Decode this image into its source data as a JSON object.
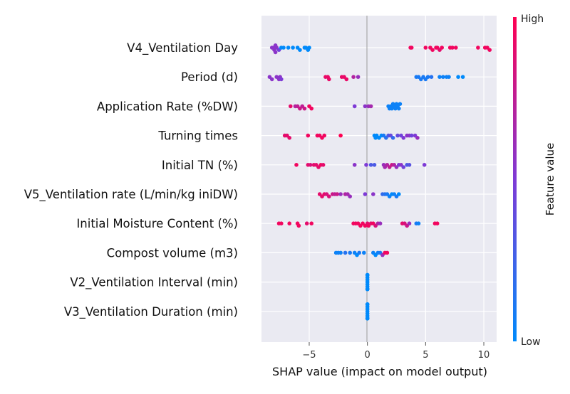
{
  "chart_data": {
    "type": "scatter",
    "subtype": "shap-beeswarm-summary",
    "xlabel": "SHAP value (impact on model output)",
    "xlim": [
      -9.1,
      11.1
    ],
    "xticks": [
      {
        "value": -5,
        "label": "−5"
      },
      {
        "value": 0,
        "label": "0"
      },
      {
        "value": 5,
        "label": "5"
      },
      {
        "value": 10,
        "label": "10"
      }
    ],
    "grid": true,
    "colorbar": {
      "label": "Feature value",
      "high_label": "High",
      "low_label": "Low",
      "low_color": "#008afb",
      "mid_color": "#7e3ad6",
      "high_color": "#ff0052"
    },
    "features": [
      {
        "name": "V4_Ventilation Day",
        "points": [
          [
            -8.2,
            0.55
          ],
          [
            -8.1,
            0.55
          ],
          [
            -8.0,
            0.55
          ],
          [
            -7.9,
            0.55
          ],
          [
            -7.8,
            0.55
          ],
          [
            -7.9,
            0.55
          ],
          [
            -7.6,
            0.45
          ],
          [
            -7.4,
            0.0
          ],
          [
            -7.2,
            0.0
          ],
          [
            -6.8,
            0.0
          ],
          [
            -6.4,
            0.0
          ],
          [
            -6.0,
            0.0
          ],
          [
            -5.8,
            0.0
          ],
          [
            -5.4,
            0.0
          ],
          [
            -5.3,
            0.0
          ],
          [
            -5.1,
            0.0
          ],
          [
            -5.0,
            0.0
          ],
          [
            3.7,
            0.95
          ],
          [
            3.8,
            0.95
          ],
          [
            5.0,
            0.95
          ],
          [
            5.4,
            0.95
          ],
          [
            5.6,
            0.95
          ],
          [
            5.9,
            0.95
          ],
          [
            6.0,
            0.95
          ],
          [
            6.2,
            0.9
          ],
          [
            6.4,
            0.95
          ],
          [
            7.1,
            0.95
          ],
          [
            7.3,
            0.95
          ],
          [
            7.6,
            0.95
          ],
          [
            9.5,
            0.95
          ],
          [
            10.1,
            0.95
          ],
          [
            10.3,
            0.95
          ],
          [
            10.5,
            0.95
          ]
        ]
      },
      {
        "name": "Period (d)",
        "points": [
          [
            -8.4,
            0.55
          ],
          [
            -8.2,
            0.55
          ],
          [
            -7.8,
            0.55
          ],
          [
            -7.6,
            0.55
          ],
          [
            -7.5,
            0.55
          ],
          [
            -7.4,
            0.5
          ],
          [
            -3.6,
            0.92
          ],
          [
            -3.4,
            0.92
          ],
          [
            -3.3,
            0.92
          ],
          [
            -2.2,
            0.92
          ],
          [
            -2.0,
            0.92
          ],
          [
            -1.8,
            0.92
          ],
          [
            -1.2,
            0.7
          ],
          [
            -0.8,
            0.6
          ],
          [
            4.2,
            0.1
          ],
          [
            4.4,
            0.1
          ],
          [
            4.6,
            0.1
          ],
          [
            4.8,
            0.1
          ],
          [
            5.0,
            0.1
          ],
          [
            5.2,
            0.1
          ],
          [
            5.5,
            0.15
          ],
          [
            6.2,
            0.05
          ],
          [
            6.5,
            0.05
          ],
          [
            6.8,
            0.05
          ],
          [
            7.0,
            0.05
          ],
          [
            7.8,
            0.0
          ],
          [
            8.2,
            0.0
          ]
        ]
      },
      {
        "name": "Application Rate (%DW)",
        "points": [
          [
            -6.6,
            0.9
          ],
          [
            -6.2,
            0.7
          ],
          [
            -6.0,
            0.75
          ],
          [
            -5.8,
            0.8
          ],
          [
            -5.6,
            0.75
          ],
          [
            -5.4,
            0.8
          ],
          [
            -5.0,
            0.95
          ],
          [
            -4.8,
            0.95
          ],
          [
            -1.1,
            0.5
          ],
          [
            -0.2,
            0.55
          ],
          [
            0.1,
            0.6
          ],
          [
            0.3,
            0.65
          ],
          [
            1.8,
            0.05
          ],
          [
            1.9,
            0.05
          ],
          [
            2.0,
            0.05
          ],
          [
            2.1,
            0.05
          ],
          [
            2.2,
            0.05
          ],
          [
            2.3,
            0.05
          ],
          [
            2.4,
            0.05
          ],
          [
            2.5,
            0.05
          ],
          [
            2.6,
            0.05
          ],
          [
            2.7,
            0.05
          ],
          [
            2.8,
            0.05
          ]
        ]
      },
      {
        "name": "Turning times",
        "points": [
          [
            -7.1,
            0.9
          ],
          [
            -6.9,
            0.9
          ],
          [
            -6.7,
            0.9
          ],
          [
            -5.1,
            0.95
          ],
          [
            -4.3,
            0.95
          ],
          [
            -4.1,
            0.95
          ],
          [
            -3.9,
            0.95
          ],
          [
            -3.7,
            0.95
          ],
          [
            -2.3,
            1.0
          ],
          [
            0.6,
            0.0
          ],
          [
            0.7,
            0.0
          ],
          [
            0.8,
            0.0
          ],
          [
            1.0,
            0.0
          ],
          [
            1.2,
            0.0
          ],
          [
            1.4,
            0.1
          ],
          [
            1.6,
            0.15
          ],
          [
            1.8,
            0.3
          ],
          [
            2.0,
            0.4
          ],
          [
            2.2,
            0.2
          ],
          [
            2.6,
            0.4
          ],
          [
            2.9,
            0.45
          ],
          [
            3.1,
            0.5
          ],
          [
            3.4,
            0.55
          ],
          [
            3.6,
            0.55
          ],
          [
            3.8,
            0.45
          ],
          [
            4.1,
            0.5
          ],
          [
            4.3,
            0.6
          ]
        ]
      },
      {
        "name": "Initial TN (%)",
        "points": [
          [
            -6.1,
            0.95
          ],
          [
            -5.1,
            0.9
          ],
          [
            -4.9,
            0.85
          ],
          [
            -4.6,
            0.9
          ],
          [
            -4.4,
            0.9
          ],
          [
            -4.2,
            0.9
          ],
          [
            -4.0,
            0.95
          ],
          [
            -3.8,
            0.9
          ],
          [
            -1.1,
            0.55
          ],
          [
            -0.1,
            0.5
          ],
          [
            0.3,
            0.3
          ],
          [
            0.6,
            0.3
          ],
          [
            1.4,
            0.6
          ],
          [
            1.5,
            0.65
          ],
          [
            1.7,
            0.7
          ],
          [
            1.9,
            0.75
          ],
          [
            2.1,
            0.8
          ],
          [
            2.3,
            0.7
          ],
          [
            2.5,
            0.6
          ],
          [
            2.7,
            0.5
          ],
          [
            2.9,
            0.55
          ],
          [
            3.1,
            0.45
          ],
          [
            3.4,
            0.3
          ],
          [
            3.6,
            0.35
          ],
          [
            4.9,
            0.5
          ]
        ]
      },
      {
        "name": "V5_Ventilation rate (L/min/kg iniDW)",
        "points": [
          [
            -4.1,
            0.9
          ],
          [
            -3.9,
            0.9
          ],
          [
            -3.7,
            0.9
          ],
          [
            -3.5,
            0.85
          ],
          [
            -3.3,
            0.85
          ],
          [
            -3.0,
            0.8
          ],
          [
            -2.8,
            0.75
          ],
          [
            -2.6,
            0.8
          ],
          [
            -2.3,
            0.6
          ],
          [
            -1.9,
            0.7
          ],
          [
            -1.7,
            0.65
          ],
          [
            -1.5,
            0.6
          ],
          [
            -0.2,
            0.5
          ],
          [
            0.5,
            0.55
          ],
          [
            1.3,
            0.2
          ],
          [
            1.5,
            0.15
          ],
          [
            1.7,
            0.1
          ],
          [
            1.9,
            0.05
          ],
          [
            2.1,
            0.0
          ],
          [
            2.3,
            0.05
          ],
          [
            2.5,
            0.1
          ],
          [
            2.7,
            0.0
          ]
        ]
      },
      {
        "name": "Initial Moisture Content (%)",
        "points": [
          [
            -7.6,
            0.95
          ],
          [
            -7.4,
            0.95
          ],
          [
            -6.7,
            0.95
          ],
          [
            -6.0,
            0.95
          ],
          [
            -5.9,
            0.95
          ],
          [
            -5.2,
            0.9
          ],
          [
            -4.8,
            0.95
          ],
          [
            -1.2,
            0.95
          ],
          [
            -1.0,
            0.95
          ],
          [
            -0.8,
            0.95
          ],
          [
            -0.6,
            0.95
          ],
          [
            -0.4,
            0.95
          ],
          [
            -0.2,
            0.95
          ],
          [
            0.0,
            0.9
          ],
          [
            0.1,
            0.95
          ],
          [
            0.3,
            0.9
          ],
          [
            0.5,
            0.95
          ],
          [
            0.7,
            0.85
          ],
          [
            0.9,
            0.7
          ],
          [
            1.1,
            0.6
          ],
          [
            3.0,
            0.9
          ],
          [
            3.2,
            0.85
          ],
          [
            3.4,
            0.8
          ],
          [
            3.6,
            0.6
          ],
          [
            4.2,
            0.1
          ],
          [
            4.4,
            0.05
          ],
          [
            5.8,
            0.95
          ],
          [
            6.0,
            0.95
          ]
        ]
      },
      {
        "name": "Compost volume (m3)",
        "points": [
          [
            -2.7,
            0.05
          ],
          [
            -2.5,
            0.05
          ],
          [
            -2.3,
            0.05
          ],
          [
            -1.9,
            0.15
          ],
          [
            -1.5,
            0.1
          ],
          [
            -1.1,
            0.05
          ],
          [
            -0.9,
            0.0
          ],
          [
            -0.7,
            0.1
          ],
          [
            -0.3,
            0.05
          ],
          [
            0.5,
            0.05
          ],
          [
            0.7,
            0.0
          ],
          [
            0.9,
            0.05
          ],
          [
            1.1,
            0.1
          ],
          [
            1.3,
            0.6
          ],
          [
            1.5,
            0.95
          ],
          [
            1.7,
            0.95
          ]
        ]
      },
      {
        "name": "V2_Ventilation Interval (min)",
        "points": [
          [
            0.0,
            0.0
          ],
          [
            0.0,
            0.0
          ],
          [
            0.0,
            0.0
          ],
          [
            0.0,
            0.0
          ],
          [
            0.0,
            0.0
          ],
          [
            0.0,
            0.0
          ],
          [
            0.0,
            0.0
          ],
          [
            0.0,
            0.0
          ],
          [
            0.0,
            0.0
          ],
          [
            0.0,
            0.0
          ],
          [
            0.0,
            0.0
          ],
          [
            0.0,
            0.0
          ]
        ]
      },
      {
        "name": "V3_Ventilation Duration (min)",
        "points": [
          [
            0.0,
            0.0
          ],
          [
            0.0,
            0.0
          ],
          [
            0.0,
            0.0
          ],
          [
            0.0,
            0.0
          ],
          [
            0.0,
            0.0
          ],
          [
            0.0,
            0.0
          ],
          [
            0.0,
            0.0
          ],
          [
            0.0,
            0.0
          ],
          [
            0.0,
            0.0
          ],
          [
            0.0,
            0.0
          ],
          [
            0.0,
            0.0
          ],
          [
            0.0,
            0.0
          ]
        ]
      }
    ]
  }
}
